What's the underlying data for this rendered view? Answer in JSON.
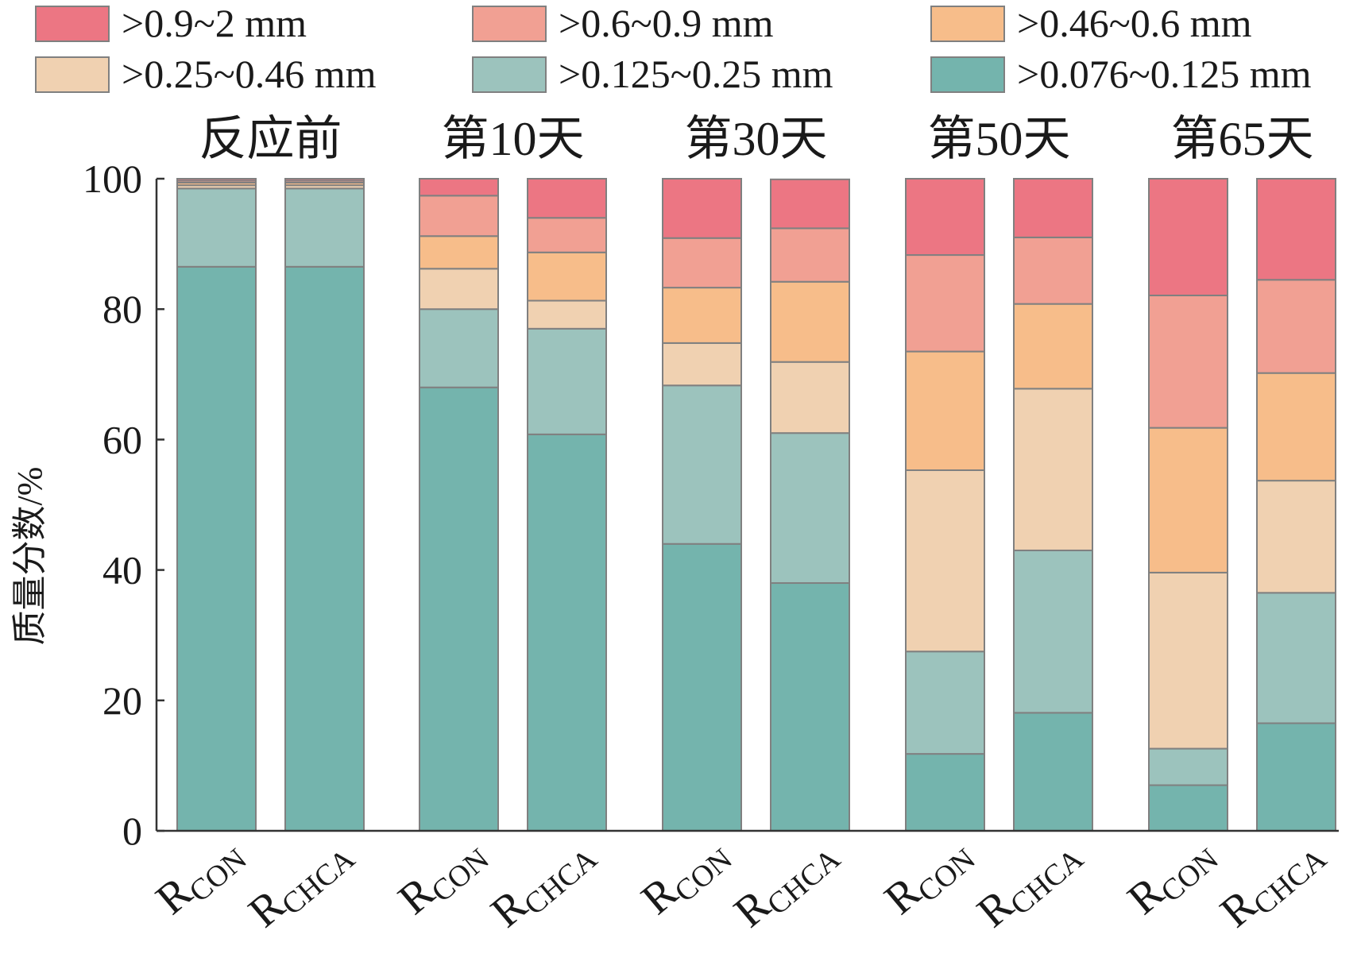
{
  "chart_data": {
    "type": "bar",
    "stacked": true,
    "ylabel": "质量分数/%",
    "ylim": [
      0,
      100
    ],
    "yticks": [
      "0",
      "20",
      "40",
      "60",
      "80",
      "100"
    ],
    "legend_position": "top",
    "groups": [
      "反应前",
      "第10天",
      "第30天",
      "第50天",
      "第65天"
    ],
    "bar_label_main": "R",
    "bars": [
      {
        "group": 0,
        "sub": "CON"
      },
      {
        "group": 0,
        "sub": "CHCA"
      },
      {
        "group": 1,
        "sub": "CON"
      },
      {
        "group": 1,
        "sub": "CHCA"
      },
      {
        "group": 2,
        "sub": "CON"
      },
      {
        "group": 2,
        "sub": "CHCA"
      },
      {
        "group": 3,
        "sub": "CON"
      },
      {
        "group": 3,
        "sub": "CHCA"
      },
      {
        "group": 4,
        "sub": "CON"
      },
      {
        "group": 4,
        "sub": "CHCA"
      }
    ],
    "series": [
      {
        "name": ">0.076~0.125 mm",
        "color": "#74b4ad",
        "values": [
          86.5,
          86.5,
          68.0,
          60.8,
          44.0,
          38.0,
          11.8,
          18.1,
          7.0,
          16.5
        ]
      },
      {
        "name": ">0.125~0.25 mm",
        "color": "#9cc3bd",
        "values": [
          12.0,
          12.0,
          12.0,
          16.2,
          24.3,
          23.0,
          15.7,
          24.9,
          5.6,
          20.0
        ]
      },
      {
        "name": ">0.25~0.46 mm",
        "color": "#f0d1b1",
        "values": [
          0.5,
          0.5,
          6.2,
          4.3,
          6.5,
          10.9,
          27.8,
          24.8,
          27.0,
          17.2
        ]
      },
      {
        "name": ">0.46~0.6 mm",
        "color": "#f7bd8a",
        "values": [
          0.4,
          0.4,
          5.0,
          7.4,
          8.5,
          12.3,
          18.2,
          13.0,
          22.2,
          16.5
        ]
      },
      {
        "name": ">0.6~0.9 mm",
        "color": "#f1a093",
        "values": [
          0.3,
          0.3,
          6.2,
          5.3,
          7.6,
          8.2,
          14.8,
          10.2,
          20.3,
          14.3
        ]
      },
      {
        "name": ">0.9~2 mm",
        "color": "#ec7683",
        "values": [
          0.3,
          0.3,
          2.6,
          6.0,
          9.1,
          7.5,
          11.7,
          9.0,
          17.9,
          15.5
        ]
      }
    ],
    "legend_order": [
      5,
      4,
      3,
      2,
      1,
      0
    ]
  }
}
